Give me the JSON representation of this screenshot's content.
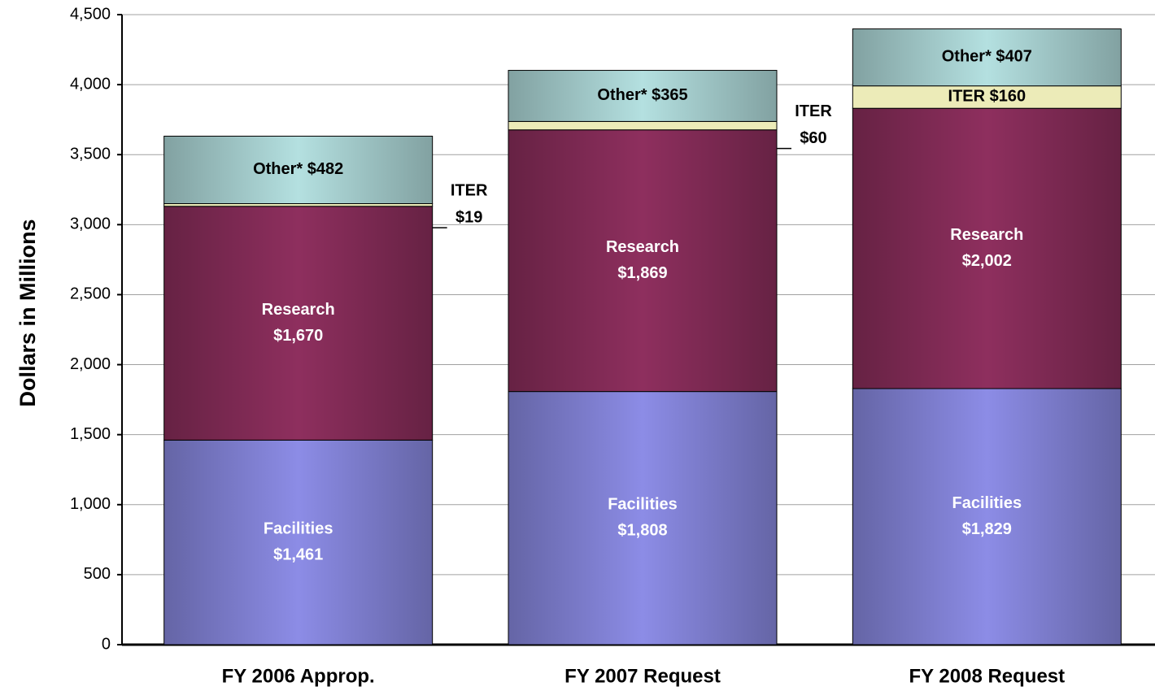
{
  "chart_data": {
    "type": "stacked_bar",
    "y_label": "Dollars in Millions",
    "categories": [
      "FY 2006 Approp.",
      "FY 2007 Request",
      "FY 2008 Request"
    ],
    "series": [
      {
        "name": "Facilities",
        "color": "#8c8ce6",
        "values": [
          1461,
          1808,
          1829
        ],
        "value_labels": [
          "$1,461",
          "$1,808",
          "$1,829"
        ]
      },
      {
        "name": "Research",
        "color": "#8e2f5e",
        "values": [
          1670,
          1869,
          2002
        ],
        "value_labels": [
          "$1,670",
          "$1,869",
          "$2,002"
        ]
      },
      {
        "name": "ITER",
        "color": "#ecebb8",
        "values": [
          19,
          60,
          160
        ],
        "value_labels": [
          "$19",
          "$60",
          "$160"
        ]
      },
      {
        "name": "Other*",
        "color": "#b4e0e0",
        "values": [
          482,
          365,
          407
        ],
        "value_labels": [
          "$482",
          "$365",
          "$407"
        ]
      }
    ],
    "ylim": [
      0,
      4500
    ],
    "yticks": [
      0,
      500,
      {
        "value": 1000,
        "label": "1,000"
      },
      {
        "value": 1500,
        "label": "1,500"
      },
      {
        "value": 2000,
        "label": "2,000"
      },
      {
        "value": 2500,
        "label": "2,500"
      },
      {
        "value": 3000,
        "label": "3,000"
      },
      {
        "value": 3500,
        "label": "3,500"
      },
      {
        "value": 4000,
        "label": "4,000"
      },
      {
        "value": 4500,
        "label": "4,500"
      }
    ],
    "grid": true
  }
}
